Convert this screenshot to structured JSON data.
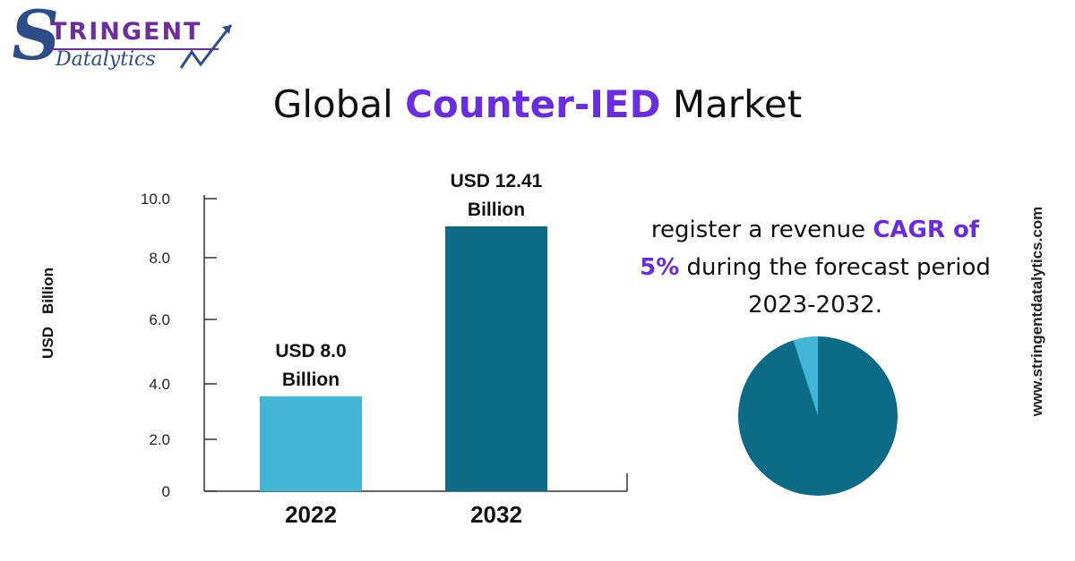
{
  "logo": {
    "letter": "S",
    "top_word": "TRINGENT",
    "bottom_word": "Datalytics"
  },
  "title": {
    "prefix": "Global ",
    "highlight": "Counter-IED",
    "suffix": " Market"
  },
  "colors": {
    "accent": "#6a2ce0",
    "bar_2022": "#41b6d6",
    "bar_2032": "#0c6b85",
    "pie_main": "#0c6b85",
    "pie_slice": "#41b6d6"
  },
  "chart_data": {
    "type": "bar",
    "categories": [
      "2022",
      "2032"
    ],
    "values": [
      8.0,
      12.41
    ],
    "bar_labels": [
      "USD 8.0 Billion",
      "USD 12.41 Billion"
    ],
    "ylabel": "USD   Billion",
    "yticks": [
      "0",
      "2.0",
      "4.0",
      "6.0",
      "8.0",
      "10.0"
    ]
  },
  "cagr": {
    "text_1": "register a revenue ",
    "highlight_1": "CAGR of",
    "highlight_2": "5%",
    "text_2": " during the forecast period 2023-2032."
  },
  "pie": {
    "slice_percent": 5
  },
  "site": "www.stringentdatalytics.com"
}
